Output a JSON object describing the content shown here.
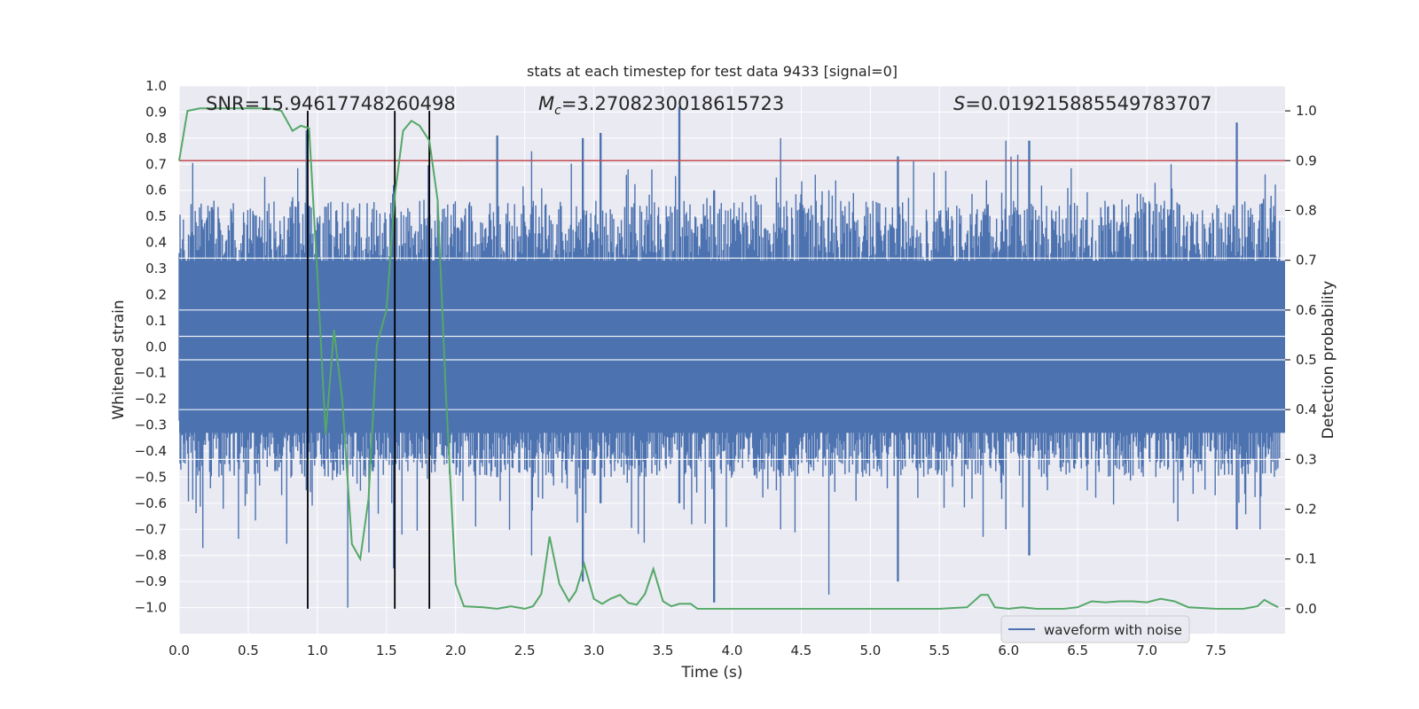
{
  "chart_data": {
    "type": "line",
    "title": "stats at each timestep for test data 9433 [signal=0]",
    "xlabel": "Time (s)",
    "ylabel": "Whitened strain",
    "ylabel_right": "Detection probability",
    "xlim": [
      0.0,
      8.0
    ],
    "ylim": [
      -1.1,
      1.0
    ],
    "ylim_right": [
      -0.05,
      1.05
    ],
    "x_ticks": [
      "0.0",
      "0.5",
      "1.0",
      "1.5",
      "2.0",
      "2.5",
      "3.0",
      "3.5",
      "4.0",
      "4.5",
      "5.0",
      "5.5",
      "6.0",
      "6.5",
      "7.0",
      "7.5"
    ],
    "y_ticks": [
      "1.0",
      "0.9",
      "0.8",
      "0.7",
      "0.6",
      "0.5",
      "0.4",
      "0.3",
      "0.2",
      "0.1",
      "0.0",
      "−0.1",
      "−0.2",
      "−0.3",
      "−0.4",
      "−0.5",
      "−0.6",
      "−0.7",
      "−0.8",
      "−0.9",
      "−1.0"
    ],
    "y_right_ticks": [
      "1.0",
      "0.9",
      "0.8",
      "0.7",
      "0.6",
      "0.5",
      "0.4",
      "0.3",
      "0.2",
      "0.1",
      "0.0"
    ],
    "grid": true,
    "legend": {
      "entries": [
        "waveform with noise"
      ],
      "position": "lower-right"
    },
    "annotations": {
      "snr": "SNR=15.94617748260498",
      "mc_prefix": "M",
      "mc_sub": "c",
      "mc_value": "=3.2708230018615723",
      "s_symbol": "S",
      "s_value": "=0.019215885549783707"
    },
    "threshold": {
      "axis": "right",
      "value": 0.9
    },
    "event_lines_x": [
      0.93,
      1.56,
      1.81
    ],
    "waveform": {
      "name": "waveform with noise",
      "description_envelope": "noise amplitude approx 0.3-0.5 with peaks to 0.9, min near -1.0",
      "peaks": [
        {
          "x": 0.92,
          "hi": 0.83,
          "lo": -0.55
        },
        {
          "x": 1.22,
          "hi": 0.55,
          "lo": -1.0
        },
        {
          "x": 1.55,
          "hi": 0.62,
          "lo": -0.85
        },
        {
          "x": 2.3,
          "hi": 0.81,
          "lo": -0.5
        },
        {
          "x": 2.55,
          "hi": 0.75,
          "lo": -0.8
        },
        {
          "x": 2.92,
          "hi": 0.8,
          "lo": -0.9
        },
        {
          "x": 3.05,
          "hi": 0.82,
          "lo": -0.6
        },
        {
          "x": 3.62,
          "hi": 0.92,
          "lo": -0.6
        },
        {
          "x": 3.87,
          "hi": 0.6,
          "lo": -0.98
        },
        {
          "x": 4.35,
          "hi": 0.8,
          "lo": -0.7
        },
        {
          "x": 4.7,
          "hi": 0.6,
          "lo": -0.95
        },
        {
          "x": 5.2,
          "hi": 0.73,
          "lo": -0.9
        },
        {
          "x": 5.98,
          "hi": 0.79,
          "lo": -0.7
        },
        {
          "x": 6.15,
          "hi": 0.79,
          "lo": -0.8
        },
        {
          "x": 7.65,
          "hi": 0.86,
          "lo": -0.7
        }
      ]
    },
    "probability": {
      "name": "detection probability",
      "x": [
        0.0,
        0.06,
        0.15,
        0.3,
        0.5,
        0.65,
        0.74,
        0.82,
        0.88,
        0.94,
        1.0,
        1.06,
        1.12,
        1.18,
        1.25,
        1.31,
        1.37,
        1.43,
        1.5,
        1.56,
        1.62,
        1.68,
        1.74,
        1.81,
        1.87,
        1.93,
        2.0,
        2.06,
        2.2,
        2.3,
        2.4,
        2.5,
        2.56,
        2.62,
        2.68,
        2.75,
        2.82,
        2.87,
        2.93,
        3.0,
        3.06,
        3.12,
        3.19,
        3.25,
        3.31,
        3.37,
        3.43,
        3.5,
        3.56,
        3.62,
        3.7,
        3.75,
        3.87,
        4.0,
        4.2,
        4.5,
        5.0,
        5.5,
        5.7,
        5.8,
        5.85,
        5.9,
        6.0,
        6.1,
        6.2,
        6.4,
        6.5,
        6.6,
        6.7,
        6.8,
        6.9,
        7.0,
        7.1,
        7.2,
        7.3,
        7.5,
        7.7,
        7.8,
        7.85,
        7.9,
        7.95
      ],
      "values": [
        0.9,
        1.0,
        1.005,
        1.005,
        1.005,
        1.005,
        1.0,
        0.96,
        0.97,
        0.965,
        0.67,
        0.35,
        0.56,
        0.42,
        0.13,
        0.1,
        0.22,
        0.53,
        0.6,
        0.83,
        0.96,
        0.98,
        0.97,
        0.94,
        0.82,
        0.43,
        0.05,
        0.005,
        0.003,
        0.0,
        0.005,
        0.0,
        0.005,
        0.03,
        0.145,
        0.05,
        0.015,
        0.035,
        0.09,
        0.02,
        0.01,
        0.02,
        0.028,
        0.012,
        0.008,
        0.03,
        0.08,
        0.015,
        0.005,
        0.01,
        0.01,
        0.0,
        0.0,
        0.0,
        0.0,
        0.0,
        0.0,
        0.0,
        0.003,
        0.028,
        0.028,
        0.003,
        0.0,
        0.003,
        0.0,
        0.0,
        0.003,
        0.015,
        0.013,
        0.015,
        0.015,
        0.013,
        0.02,
        0.015,
        0.003,
        0.0,
        0.0,
        0.005,
        0.018,
        0.01,
        0.003
      ]
    },
    "colors": {
      "background": "#eaeaf2",
      "waveform": "#4c72b0",
      "probability": "#55a868",
      "threshold": "#c44e52",
      "event_line": "#000000",
      "grid": "#ffffff"
    }
  }
}
